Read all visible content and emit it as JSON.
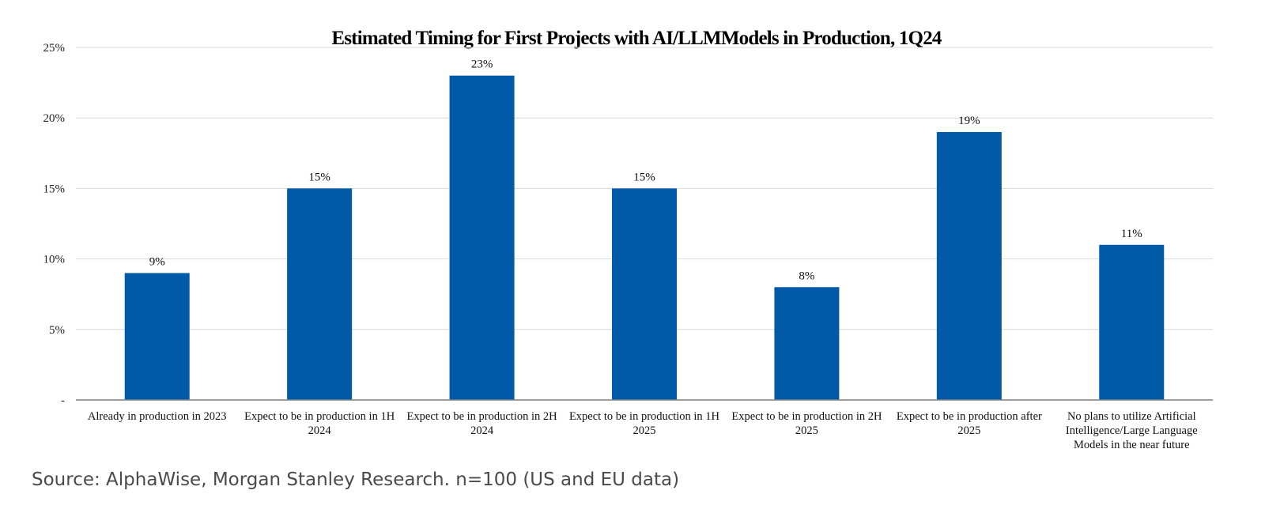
{
  "colors": {
    "bar": "#005aa7",
    "grid": "#d9d9d9",
    "axis": "#7f7f7f"
  },
  "source": "Source: AlphaWise, Morgan Stanley Research. n=100 (US and EU data)",
  "chart_data": {
    "type": "bar",
    "title": "Estimated Timing for First Projects with AI/LLMModels in Production, 1Q24",
    "xlabel": "",
    "ylabel": "",
    "ylim": [
      0,
      25
    ],
    "grid": true,
    "yticks": [
      {
        "value": 0,
        "label": "-"
      },
      {
        "value": 5,
        "label": "5%"
      },
      {
        "value": 10,
        "label": "10%"
      },
      {
        "value": 15,
        "label": "15%"
      },
      {
        "value": 20,
        "label": "20%"
      },
      {
        "value": 25,
        "label": "25%"
      }
    ],
    "categories": [
      [
        "Already in production in 2023"
      ],
      [
        "Expect to be in production in 1H",
        "2024"
      ],
      [
        "Expect to be in production in 2H",
        "2024"
      ],
      [
        "Expect to be in production in 1H",
        "2025"
      ],
      [
        "Expect to be in production in 2H",
        "2025"
      ],
      [
        "Expect to be in production after",
        "2025"
      ],
      [
        "No plans to utilize Artificial",
        "Intelligence/Large Language",
        "Models in the near future"
      ]
    ],
    "values": [
      9,
      15,
      23,
      15,
      8,
      19,
      11
    ],
    "data_labels": [
      "9%",
      "15%",
      "23%",
      "15%",
      "8%",
      "19%",
      "11%"
    ]
  }
}
